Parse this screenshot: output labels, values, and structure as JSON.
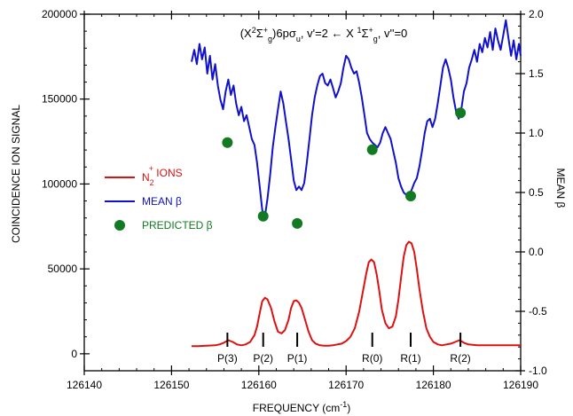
{
  "chart_data": {
    "type": "line",
    "title": "",
    "annotation": {
      "parts": [
        {
          "text": "(X"
        },
        {
          "text": "2",
          "sup": true
        },
        {
          "text": "Σ"
        },
        {
          "text": "+",
          "sup": true
        },
        {
          "text": "g",
          "sub": true
        },
        {
          "text": ")6pσ"
        },
        {
          "text": "u",
          "sub": true
        },
        {
          "text": ", v'=2"
        },
        {
          "text": " ← ",
          "arrow": true
        },
        {
          "text": "X "
        },
        {
          "text": "1",
          "sup": true
        },
        {
          "text": "Σ"
        },
        {
          "text": "+",
          "sup": true
        },
        {
          "text": "g",
          "sub": true
        },
        {
          "text": ", v''=0"
        }
      ]
    },
    "xlabel": "FREQUENCY  (cm",
    "xlabel_sup": "-1",
    "xlabel_end": ")",
    "ylabel_left": "COINCIDENCE ION SIGNAL",
    "ylabel_right": "MEAN β",
    "xlim": [
      126140,
      126190
    ],
    "ylim_left": [
      -10000,
      200000
    ],
    "ylim_right": [
      -1.0,
      2.0
    ],
    "x_ticks": [
      126140,
      126150,
      126160,
      126170,
      126180,
      126190
    ],
    "x_tick_labels": [
      "126140",
      "126150",
      "126160",
      "126170",
      "126180",
      "126190"
    ],
    "y_left_ticks": [
      0,
      50000,
      100000,
      150000,
      200000
    ],
    "y_left_tick_labels": [
      "0",
      "50000",
      "100000",
      "150000",
      "200000"
    ],
    "y_right_ticks": [
      -1.0,
      -0.5,
      0.0,
      0.5,
      1.0,
      1.5,
      2.0
    ],
    "y_right_tick_labels": [
      "-1.0",
      "-0.5",
      "0.0",
      "0.5",
      "1.0",
      "1.5",
      "2.0"
    ],
    "legend": {
      "placement": "left-center",
      "entries": [
        {
          "label": "N",
          "sup": "+",
          "sub": "2",
          "suffix": " IONS",
          "color": "#dd1111",
          "kind": "line"
        },
        {
          "label": "MEAN β",
          "color": "#1111cc",
          "kind": "line"
        },
        {
          "label": "PREDICTED β",
          "color": "#117a22",
          "kind": "marker"
        }
      ]
    },
    "branches": [
      {
        "label": "P(3)",
        "x": 126156.4
      },
      {
        "label": "P(2)",
        "x": 126160.5
      },
      {
        "label": "P(1)",
        "x": 126164.4
      },
      {
        "label": "R(0)",
        "x": 126173.0
      },
      {
        "label": "R(1)",
        "x": 126177.4
      },
      {
        "label": "R(2)",
        "x": 126183.1
      }
    ],
    "series": [
      {
        "name": "N2+ IONS",
        "axis": "left",
        "color": "#dd1111",
        "x": [
          126152.3,
          126153.0,
          126154.0,
          126155.0,
          126155.5,
          126156.0,
          126156.5,
          126157.0,
          126157.5,
          126158.0,
          126158.5,
          126159.0,
          126159.5,
          126159.8,
          126160.1,
          126160.4,
          126160.7,
          126161.0,
          126161.4,
          126161.8,
          126162.2,
          126162.6,
          126163.0,
          126163.4,
          126163.7,
          126164.0,
          126164.3,
          126164.6,
          126164.9,
          126165.3,
          126165.7,
          126166.1,
          126166.5,
          126167.0,
          126167.5,
          126168.0,
          126168.5,
          126169.0,
          126169.5,
          126170.0,
          126170.5,
          126171.0,
          126171.5,
          126171.9,
          126172.3,
          126172.6,
          126172.9,
          126173.2,
          126173.5,
          126173.8,
          126174.1,
          126174.5,
          126174.9,
          126175.3,
          126175.7,
          126176.0,
          126176.3,
          126176.6,
          126176.9,
          126177.2,
          126177.5,
          126177.8,
          126178.1,
          126178.4,
          126178.8,
          126179.2,
          126179.6,
          126180.0,
          126180.5,
          126181.0,
          126181.5,
          126182.0,
          126182.5,
          126183.0,
          126183.5,
          126184.0,
          126185.0,
          126186.0,
          126187.0,
          126188.0,
          126189.0,
          126190.0
        ],
        "values": [
          4500,
          4500,
          4800,
          5000,
          5500,
          6500,
          8000,
          7000,
          5500,
          5000,
          5500,
          7000,
          11000,
          16000,
          24000,
          31000,
          33000,
          32000,
          27000,
          19000,
          13000,
          12000,
          14000,
          20000,
          27000,
          31000,
          31500,
          30000,
          27000,
          20000,
          13000,
          8000,
          6000,
          5000,
          4800,
          4800,
          5000,
          5500,
          6000,
          7500,
          10000,
          15000,
          25000,
          36000,
          47000,
          54000,
          55500,
          54000,
          47000,
          37000,
          26000,
          18000,
          15000,
          16000,
          22000,
          32000,
          45000,
          57000,
          64000,
          66000,
          65000,
          60000,
          50000,
          38000,
          25000,
          15000,
          10000,
          7000,
          5500,
          5000,
          5500,
          6000,
          7000,
          8000,
          6500,
          5500,
          5000,
          5000,
          5000,
          5000,
          5000,
          5000
        ]
      },
      {
        "name": "MEAN β",
        "axis": "right",
        "color": "#1111cc",
        "x": [
          126152.3,
          126152.6,
          126152.9,
          126153.2,
          126153.5,
          126153.8,
          126154.1,
          126154.4,
          126154.7,
          126155.0,
          126155.3,
          126155.6,
          126155.9,
          126156.2,
          126156.5,
          126156.8,
          126157.1,
          126157.4,
          126157.7,
          126158.0,
          126158.3,
          126158.6,
          126158.9,
          126159.2,
          126159.5,
          126159.8,
          126160.1,
          126160.4,
          126160.7,
          126161.0,
          126161.3,
          126161.6,
          126161.9,
          126162.2,
          126162.5,
          126162.8,
          126163.1,
          126163.4,
          126163.7,
          126164.0,
          126164.3,
          126164.6,
          126164.9,
          126165.2,
          126165.5,
          126165.8,
          126166.1,
          126166.4,
          126166.7,
          126167.0,
          126167.3,
          126167.6,
          126167.9,
          126168.2,
          126168.5,
          126168.8,
          126169.1,
          126169.4,
          126169.7,
          126170.0,
          126170.3,
          126170.6,
          126170.9,
          126171.2,
          126171.5,
          126171.8,
          126172.1,
          126172.4,
          126172.7,
          126173.0,
          126173.3,
          126173.6,
          126173.9,
          126174.2,
          126174.5,
          126174.8,
          126175.1,
          126175.4,
          126175.7,
          126176.0,
          126176.3,
          126176.6,
          126176.9,
          126177.2,
          126177.5,
          126177.8,
          126178.1,
          126178.4,
          126178.7,
          126179.0,
          126179.3,
          126179.6,
          126179.9,
          126180.2,
          126180.5,
          126180.8,
          126181.1,
          126181.4,
          126181.7,
          126182.0,
          126182.3,
          126182.6,
          126182.9,
          126183.2,
          126183.5,
          126183.8,
          126184.1,
          126184.4,
          126184.7,
          126185.0,
          126185.3,
          126185.6,
          126185.9,
          126186.2,
          126186.5,
          126186.8,
          126187.1,
          126187.4,
          126187.7,
          126188.0,
          126188.3,
          126188.6,
          126188.9,
          126189.2,
          126189.5,
          126189.8,
          126190.0
        ],
        "values": [
          1.6,
          1.7,
          1.58,
          1.75,
          1.62,
          1.72,
          1.5,
          1.65,
          1.45,
          1.58,
          1.4,
          1.28,
          1.2,
          1.35,
          1.45,
          1.32,
          1.4,
          1.25,
          1.15,
          1.22,
          1.1,
          1.15,
          1.05,
          0.95,
          0.9,
          0.75,
          0.55,
          0.35,
          0.3,
          0.45,
          0.65,
          0.88,
          1.05,
          1.2,
          1.35,
          1.25,
          1.1,
          0.95,
          0.78,
          0.6,
          0.52,
          0.55,
          0.52,
          0.58,
          0.75,
          0.95,
          1.15,
          1.3,
          1.4,
          1.48,
          1.5,
          1.42,
          1.4,
          1.45,
          1.38,
          1.3,
          1.35,
          1.42,
          1.55,
          1.65,
          1.62,
          1.55,
          1.5,
          1.52,
          1.42,
          1.3,
          1.15,
          1.0,
          0.95,
          0.92,
          0.9,
          0.88,
          0.92,
          1.0,
          1.05,
          1.0,
          0.95,
          0.85,
          0.75,
          0.62,
          0.55,
          0.5,
          0.48,
          0.48,
          0.52,
          0.58,
          0.62,
          0.72,
          0.85,
          1.0,
          1.1,
          1.12,
          1.05,
          1.12,
          1.25,
          1.4,
          1.55,
          1.62,
          1.55,
          1.45,
          1.3,
          1.18,
          1.12,
          1.2,
          1.35,
          1.42,
          1.55,
          1.62,
          1.7,
          1.6,
          1.75,
          1.68,
          1.8,
          1.72,
          1.85,
          1.7,
          1.88,
          1.78,
          1.7,
          1.82,
          1.95,
          1.8,
          1.65,
          1.78,
          1.62,
          1.75,
          1.65
        ]
      },
      {
        "name": "PREDICTED β",
        "axis": "right",
        "color": "#117a22",
        "kind": "scatter",
        "x": [
          126156.4,
          126160.5,
          126164.4,
          126173.0,
          126177.4,
          126183.1
        ],
        "values": [
          0.92,
          0.3,
          0.24,
          0.86,
          0.47,
          1.17
        ]
      }
    ],
    "grid": false
  }
}
